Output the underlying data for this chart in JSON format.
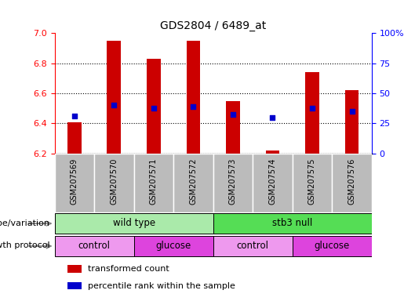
{
  "title": "GDS2804 / 6489_at",
  "samples": [
    "GSM207569",
    "GSM207570",
    "GSM207571",
    "GSM207572",
    "GSM207573",
    "GSM207574",
    "GSM207575",
    "GSM207576"
  ],
  "bar_bottom": 6.2,
  "bar_tops": [
    6.41,
    6.95,
    6.83,
    6.95,
    6.55,
    6.22,
    6.74,
    6.62
  ],
  "percentile_values": [
    6.45,
    6.52,
    6.5,
    6.51,
    6.46,
    6.44,
    6.5,
    6.48
  ],
  "ylim_left": [
    6.2,
    7.0
  ],
  "ylim_right": [
    0,
    100
  ],
  "yticks_left": [
    6.2,
    6.4,
    6.6,
    6.8,
    7.0
  ],
  "ytick_labels_right": [
    "0",
    "25",
    "50",
    "75",
    "100%"
  ],
  "yticks_right": [
    0,
    25,
    50,
    75,
    100
  ],
  "bar_color": "#cc0000",
  "dot_color": "#0000cc",
  "genotype_groups": [
    {
      "label": "wild type",
      "start": 0,
      "end": 4,
      "color": "#aaeaaa"
    },
    {
      "label": "stb3 null",
      "start": 4,
      "end": 8,
      "color": "#55dd55"
    }
  ],
  "protocol_groups": [
    {
      "label": "control",
      "start": 0,
      "end": 2,
      "color": "#ee99ee"
    },
    {
      "label": "glucose",
      "start": 2,
      "end": 4,
      "color": "#dd44dd"
    },
    {
      "label": "control",
      "start": 4,
      "end": 6,
      "color": "#ee99ee"
    },
    {
      "label": "glucose",
      "start": 6,
      "end": 8,
      "color": "#dd44dd"
    }
  ],
  "legend_items": [
    {
      "label": "transformed count",
      "color": "#cc0000"
    },
    {
      "label": "percentile rank within the sample",
      "color": "#0000cc"
    }
  ],
  "genotype_label": "genotype/variation",
  "protocol_label": "growth protocol",
  "tick_bg_color": "#bbbbbb",
  "bg_color": "#ffffff"
}
